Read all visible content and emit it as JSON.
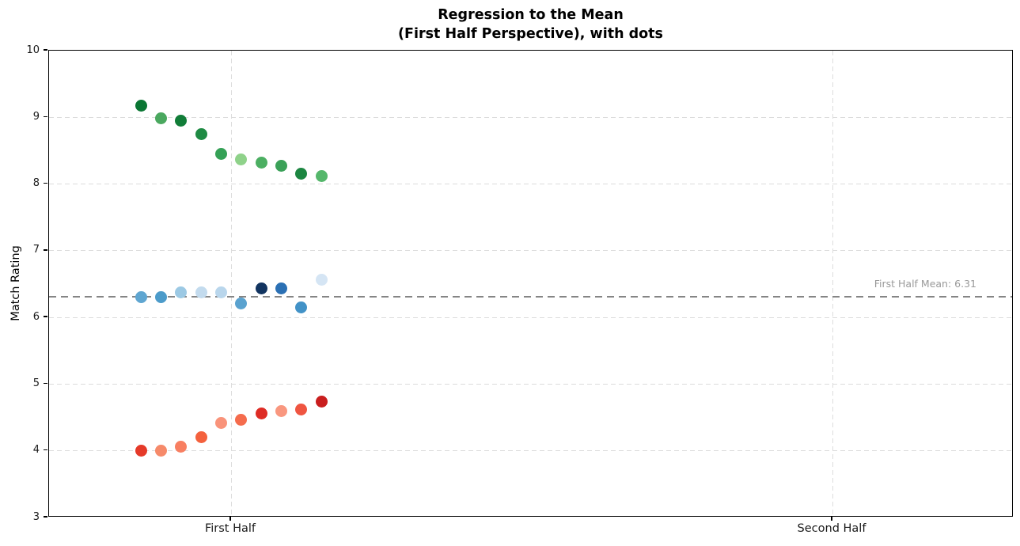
{
  "chart_data": {
    "type": "scatter",
    "title_line1": "Regression to the Mean",
    "title_line2": "(First Half Perspective), with dots",
    "ylabel": "Match Rating",
    "ylim": [
      3,
      10
    ],
    "yticks": [
      3,
      4,
      5,
      6,
      7,
      8,
      9,
      10
    ],
    "x_categories": [
      "First Half",
      "Second Half"
    ],
    "grid": true,
    "legend": false,
    "mean_line": {
      "value": 6.31,
      "label": "First Half Mean: 6.31",
      "color": "#858585",
      "label_color": "#9a9a9a"
    },
    "jitter_offsets": [
      -0.15,
      -0.1167,
      -0.0833,
      -0.05,
      -0.0167,
      0.0167,
      0.05,
      0.0833,
      0.1167,
      0.15
    ],
    "series": [
      {
        "name": "high-rated-group-first-half",
        "category": "First Half",
        "values": [
          9.18,
          8.98,
          8.95,
          8.75,
          8.45,
          8.37,
          8.32,
          8.27,
          8.16,
          8.12
        ],
        "colors": [
          "#0a7633",
          "#4aa85f",
          "#117d38",
          "#1e8a43",
          "#35a156",
          "#8fd28a",
          "#4caf62",
          "#3ba158",
          "#1c8641",
          "#55b76b"
        ]
      },
      {
        "name": "mid-rated-group-first-half",
        "category": "First Half",
        "values": [
          6.31,
          6.31,
          6.38,
          6.38,
          6.38,
          6.21,
          6.43,
          6.44,
          6.15,
          6.56
        ],
        "colors": [
          "#5fa6d1",
          "#4c9bca",
          "#9cc9e4",
          "#c3dbee",
          "#b9d6ec",
          "#5aa2cf",
          "#123460",
          "#2b70b4",
          "#4292c7",
          "#d5e5f4"
        ]
      },
      {
        "name": "low-rated-group-first-half",
        "category": "First Half",
        "values": [
          4.0,
          4.0,
          4.06,
          4.21,
          4.42,
          4.46,
          4.56,
          4.6,
          4.62,
          4.74
        ],
        "colors": [
          "#e53a29",
          "#f68a6a",
          "#f87f61",
          "#f4613d",
          "#f9937a",
          "#f56c4d",
          "#de2c25",
          "#f9977f",
          "#ef5541",
          "#c91e1e"
        ]
      }
    ]
  }
}
